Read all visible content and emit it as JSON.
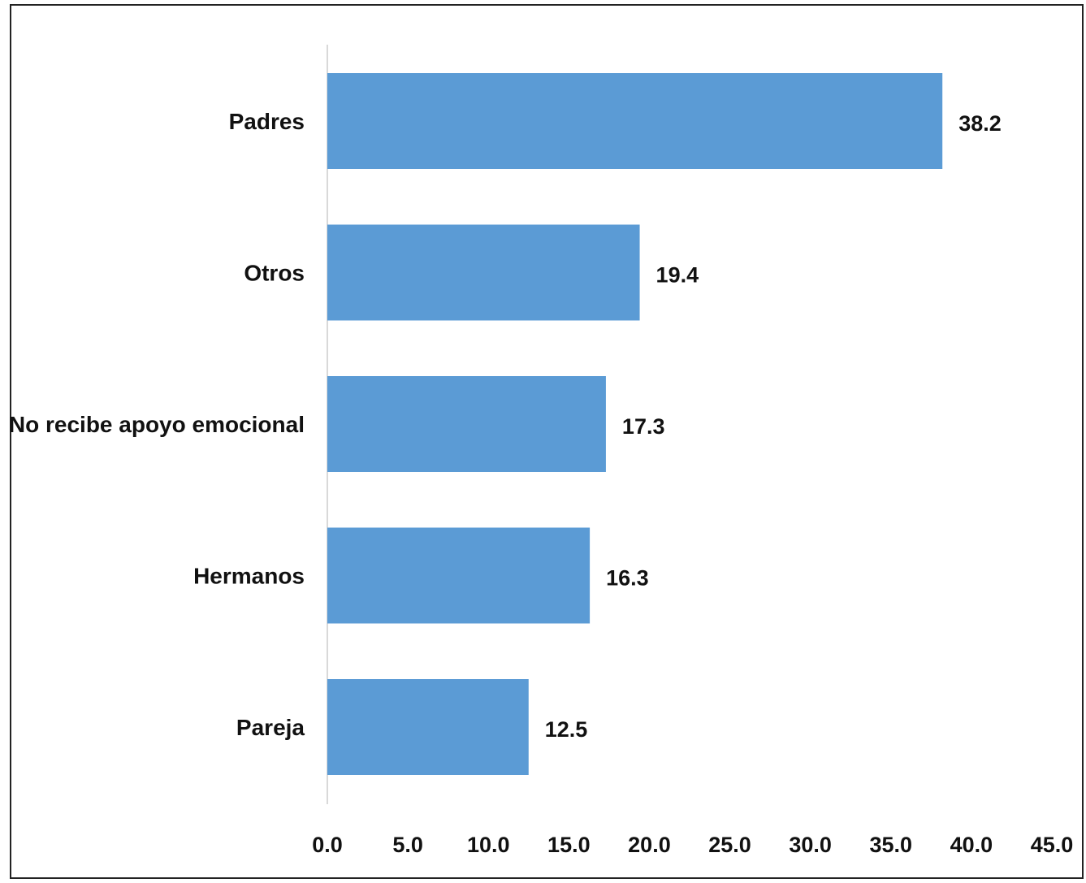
{
  "chart_data": {
    "type": "bar",
    "orientation": "horizontal",
    "title": "",
    "xlabel": "",
    "ylabel": "",
    "categories": [
      "Padres",
      "Otros",
      "No recibe apoyo emocional",
      "Hermanos",
      "Pareja"
    ],
    "values": [
      38.2,
      19.4,
      17.3,
      16.3,
      12.5
    ],
    "value_labels": [
      "38.2",
      "19.4",
      "17.3",
      "16.3",
      "12.5"
    ],
    "xlim": [
      0,
      45
    ],
    "ticks": [
      "0.0",
      "5.0",
      "10.0",
      "15.0",
      "20.0",
      "25.0",
      "30.0",
      "35.0",
      "40.0",
      "45.0"
    ],
    "grid": false,
    "legend": "none",
    "bar_color": "#5b9bd5",
    "axis_color": "#d9d9d9"
  }
}
